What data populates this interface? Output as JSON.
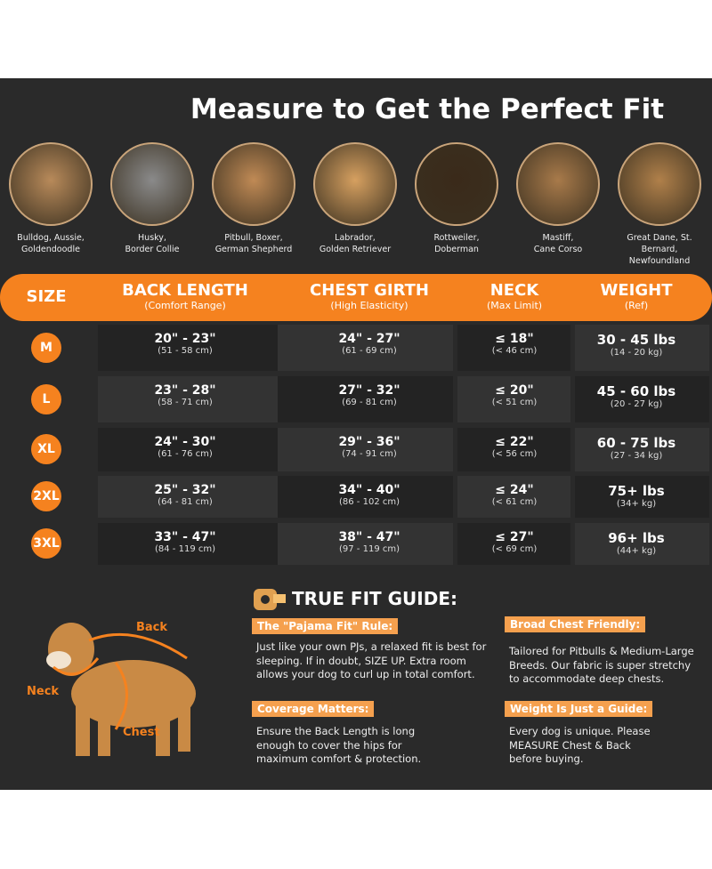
{
  "title": "Measure to Get the Perfect Fit",
  "breeds": [
    [
      "Bulldog, Aussie,",
      "Goldendoodle"
    ],
    [
      "Husky,",
      "Border Collie"
    ],
    [
      "Pitbull, Boxer,",
      "German Shepherd"
    ],
    [
      "Labrador,",
      "Golden Retriever"
    ],
    [
      "Rottweiler,",
      "Doberman"
    ],
    [
      "Mastiff,",
      "Cane Corso"
    ],
    [
      "Great Dane, St.",
      "Bernard, Newfoundland"
    ]
  ],
  "table": {
    "headers": [
      {
        "title": "SIZE"
      },
      {
        "title": "BACK LENGTH",
        "sub": "(Comfort Range)"
      },
      {
        "title": "CHEST GIRTH",
        "sub": "(High Elasticity)"
      },
      {
        "title": "NECK",
        "sub": "(Max Limit)"
      },
      {
        "title": "WEIGHT",
        "sub": "(Ref)"
      }
    ],
    "rows": [
      [
        "M",
        [
          "20\" - 23\"",
          "(51 - 58 cm)"
        ],
        [
          "24\" - 27\"",
          "(61 - 69 cm)"
        ],
        [
          "≤ 18\"",
          "(< 46 cm)"
        ],
        [
          "30 - 45 lbs",
          "(14 - 20 kg)"
        ]
      ],
      [
        "L",
        [
          "23\" - 28\"",
          "(58 - 71 cm)"
        ],
        [
          "27\" - 32\"",
          "(69 - 81 cm)"
        ],
        [
          "≤ 20\"",
          "(< 51 cm)"
        ],
        [
          "45 - 60 lbs",
          "(20 - 27 kg)"
        ]
      ],
      [
        "XL",
        [
          "24\" - 30\"",
          "(61 - 76 cm)"
        ],
        [
          "29\" - 36\"",
          "(74 - 91 cm)"
        ],
        [
          "≤ 22\"",
          "(< 56 cm)"
        ],
        [
          "60 - 75 lbs",
          "(27 - 34 kg)"
        ]
      ],
      [
        "2XL",
        [
          "25\" - 32\"",
          "(64 - 81 cm)"
        ],
        [
          "34\" - 40\"",
          "(86 - 102 cm)"
        ],
        [
          "≤ 24\"",
          "(< 61 cm)"
        ],
        [
          "75+ lbs",
          "(34+ kg)"
        ]
      ],
      [
        "3XL",
        [
          "33\" - 47\"",
          "(84 - 119 cm)"
        ],
        [
          "38\" - 47\"",
          "(97 - 119 cm)"
        ],
        [
          "≤ 27\"",
          "(< 69 cm)"
        ],
        [
          "96+ lbs",
          "(44+ kg)"
        ]
      ]
    ]
  },
  "guide": {
    "title": "TRUE FIT GUIDE:",
    "sections": [
      {
        "heading": "The \"Pajama Fit\" Rule:",
        "lines": [
          "Just like your own PJs, a relaxed fit is best for",
          "sleeping. If in doubt, SIZE UP. Extra room",
          "allows your dog to curl up in total comfort."
        ]
      },
      {
        "heading": "Broad Chest Friendly:",
        "lines": [
          "Tailored for Pitbulls & Medium-Large",
          "Breeds. Our fabric is super stretchy",
          "to accommodate deep chests."
        ]
      },
      {
        "heading": "Coverage Matters:",
        "lines": [
          "Ensure the Back Length is long",
          "enough to cover the hips for",
          "maximum comfort & protection."
        ]
      },
      {
        "heading": "Weight Is Just a Guide:",
        "lines": [
          "Every dog is unique. Please",
          "MEASURE Chest & Back",
          "before buying."
        ]
      }
    ]
  },
  "dog_labels": {
    "back": "Back",
    "neck": "Neck",
    "chest": "Chest"
  }
}
